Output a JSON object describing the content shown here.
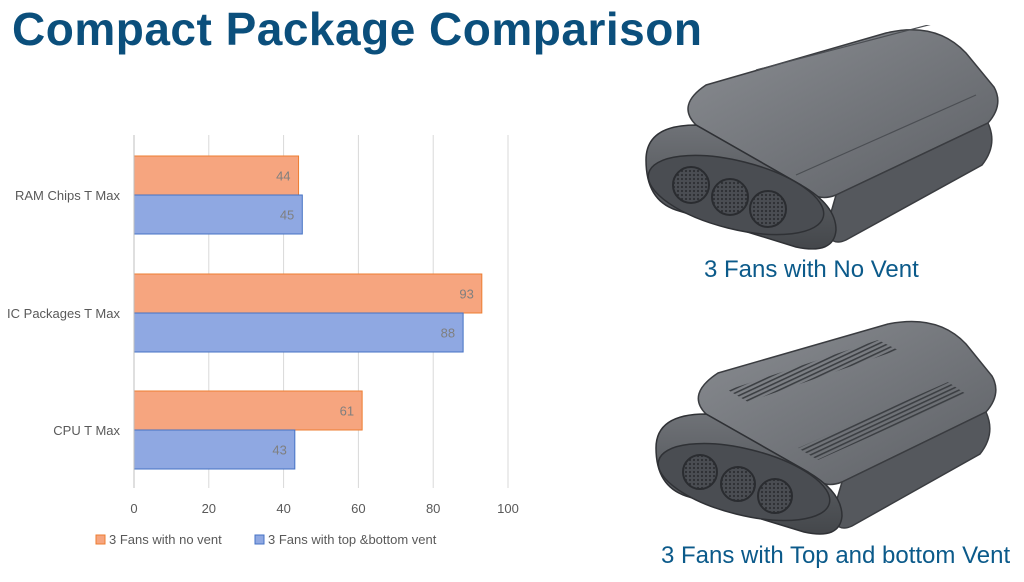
{
  "slide": {
    "title": "Compact Package Comparison"
  },
  "captions": {
    "top_image": "3 Fans with No Vent",
    "bottom_image": "3 Fans with Top and bottom Vent"
  },
  "images": {
    "top": "enclosure-no-vent",
    "bottom": "enclosure-top-bottom-vent"
  },
  "chart_data": {
    "type": "bar",
    "orientation": "horizontal",
    "categories": [
      "RAM Chips T Max",
      "IC Packages T Max",
      "CPU T  Max"
    ],
    "series": [
      {
        "name": "3 Fans with no vent",
        "values": [
          44,
          93,
          61
        ],
        "color": "#f6a57f"
      },
      {
        "name": "3 Fans with top &bottom vent",
        "values": [
          45,
          88,
          43
        ],
        "color": "#8fa8e2"
      }
    ],
    "xlim": [
      0,
      100
    ],
    "xticks": [
      0,
      20,
      40,
      60,
      80,
      100
    ],
    "grid": true,
    "legend": "bottom",
    "data_labels": true
  }
}
